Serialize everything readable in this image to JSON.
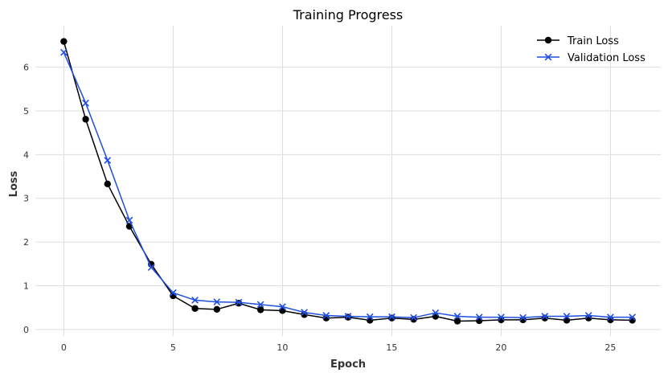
{
  "chart_data": {
    "type": "line",
    "title": "Training Progress",
    "xlabel": "Epoch",
    "ylabel": "Loss",
    "xlim": [
      -1.3,
      27.3
    ],
    "ylim": [
      -0.15,
      6.95
    ],
    "xticks": [
      0,
      5,
      10,
      15,
      20,
      25
    ],
    "yticks": [
      0,
      1,
      2,
      3,
      4,
      5,
      6
    ],
    "grid": true,
    "legend_position": "top-right",
    "x": [
      0,
      1,
      2,
      3,
      4,
      5,
      6,
      7,
      8,
      9,
      10,
      11,
      12,
      13,
      14,
      15,
      16,
      17,
      18,
      19,
      20,
      21,
      22,
      23,
      24,
      25,
      26
    ],
    "series": [
      {
        "name": "Train Loss",
        "color": "#000000",
        "marker": "circle",
        "values": [
          6.59,
          4.81,
          3.33,
          2.36,
          1.49,
          0.77,
          0.48,
          0.46,
          0.6,
          0.45,
          0.43,
          0.34,
          0.26,
          0.28,
          0.21,
          0.26,
          0.23,
          0.3,
          0.19,
          0.2,
          0.22,
          0.22,
          0.26,
          0.21,
          0.26,
          0.22,
          0.21
        ]
      },
      {
        "name": "Validation Loss",
        "color": "#1f4fe0",
        "marker": "x",
        "values": [
          6.34,
          5.18,
          3.87,
          2.5,
          1.42,
          0.84,
          0.67,
          0.63,
          0.62,
          0.57,
          0.52,
          0.39,
          0.32,
          0.3,
          0.29,
          0.29,
          0.27,
          0.38,
          0.3,
          0.28,
          0.28,
          0.27,
          0.3,
          0.3,
          0.32,
          0.28,
          0.28
        ]
      }
    ]
  }
}
